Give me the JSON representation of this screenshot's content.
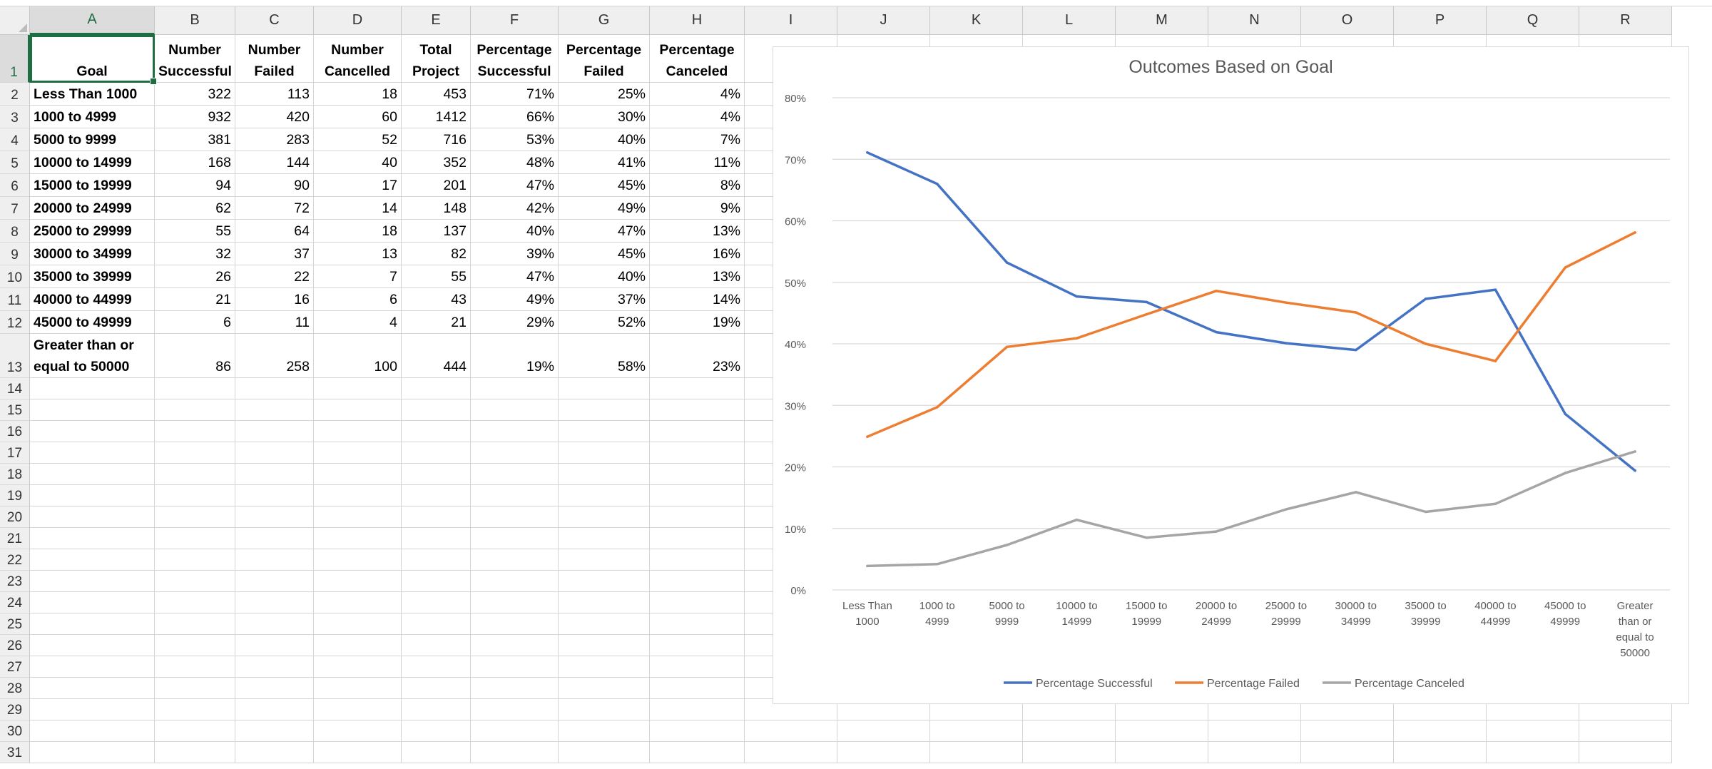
{
  "columns": [
    "A",
    "B",
    "C",
    "D",
    "E",
    "F",
    "G",
    "H",
    "I",
    "J",
    "K",
    "L",
    "M",
    "N",
    "O",
    "P",
    "Q",
    "R"
  ],
  "selected_column": "A",
  "selected_row": "1",
  "row_numbers": [
    "1",
    "2",
    "3",
    "4",
    "5",
    "6",
    "7",
    "8",
    "9",
    "10",
    "11",
    "12",
    "13",
    "14",
    "15",
    "16",
    "17",
    "18",
    "19",
    "20",
    "21",
    "22",
    "23",
    "24",
    "25",
    "26",
    "27",
    "28",
    "29",
    "30",
    "31"
  ],
  "table": {
    "headers": [
      [
        "Goal"
      ],
      [
        "Number",
        "Successful"
      ],
      [
        "Number",
        "Failed"
      ],
      [
        "Number",
        "Cancelled"
      ],
      [
        "Total",
        "Project"
      ],
      [
        "Percentage",
        "Successful"
      ],
      [
        "Percentage",
        "Failed"
      ],
      [
        "Percentage",
        "Canceled"
      ]
    ],
    "rows": [
      [
        "Less Than 1000",
        "322",
        "113",
        "18",
        "453",
        "71%",
        "25%",
        "4%"
      ],
      [
        "1000 to 4999",
        "932",
        "420",
        "60",
        "1412",
        "66%",
        "30%",
        "4%"
      ],
      [
        "5000 to 9999",
        "381",
        "283",
        "52",
        "716",
        "53%",
        "40%",
        "7%"
      ],
      [
        "10000 to 14999",
        "168",
        "144",
        "40",
        "352",
        "48%",
        "41%",
        "11%"
      ],
      [
        "15000 to 19999",
        "94",
        "90",
        "17",
        "201",
        "47%",
        "45%",
        "8%"
      ],
      [
        "20000 to 24999",
        "62",
        "72",
        "14",
        "148",
        "42%",
        "49%",
        "9%"
      ],
      [
        "25000 to 29999",
        "55",
        "64",
        "18",
        "137",
        "40%",
        "47%",
        "13%"
      ],
      [
        "30000 to 34999",
        "32",
        "37",
        "13",
        "82",
        "39%",
        "45%",
        "16%"
      ],
      [
        "35000 to 39999",
        "26",
        "22",
        "7",
        "55",
        "47%",
        "40%",
        "13%"
      ],
      [
        "40000 to 44999",
        "21",
        "16",
        "6",
        "43",
        "49%",
        "37%",
        "14%"
      ],
      [
        "45000 to 49999",
        "6",
        "11",
        "4",
        "21",
        "29%",
        "52%",
        "19%"
      ],
      [
        "Greater than or equal to 50000",
        "86",
        "258",
        "100",
        "444",
        "19%",
        "58%",
        "23%"
      ]
    ],
    "last_goal_lines": [
      "Greater than or",
      "equal to 50000"
    ]
  },
  "chart_data": {
    "type": "line",
    "title": "Outcomes Based on Goal",
    "categories": [
      [
        "Less Than",
        "1000"
      ],
      [
        "1000 to",
        "4999"
      ],
      [
        "5000 to",
        "9999"
      ],
      [
        "10000 to",
        "14999"
      ],
      [
        "15000 to",
        "19999"
      ],
      [
        "20000 to",
        "24999"
      ],
      [
        "25000 to",
        "29999"
      ],
      [
        "30000 to",
        "34999"
      ],
      [
        "35000 to",
        "39999"
      ],
      [
        "40000 to",
        "44999"
      ],
      [
        "45000 to",
        "49999"
      ],
      [
        "Greater",
        "than or",
        "equal to",
        "50000"
      ]
    ],
    "ylim": [
      0,
      80
    ],
    "yticks": [
      "0%",
      "10%",
      "20%",
      "30%",
      "40%",
      "50%",
      "60%",
      "70%",
      "80%"
    ],
    "grid": true,
    "legend_position": "bottom",
    "series": [
      {
        "name": "Percentage Successful",
        "color": "#4472c4",
        "values": [
          71.1,
          66.0,
          53.2,
          47.7,
          46.8,
          41.9,
          40.1,
          39.0,
          47.3,
          48.8,
          28.6,
          19.4
        ]
      },
      {
        "name": "Percentage Failed",
        "color": "#ed7d31",
        "values": [
          24.9,
          29.7,
          39.5,
          40.9,
          44.8,
          48.6,
          46.7,
          45.1,
          40.0,
          37.2,
          52.4,
          58.1
        ]
      },
      {
        "name": "Percentage Canceled",
        "color": "#a5a5a5",
        "values": [
          3.9,
          4.2,
          7.3,
          11.4,
          8.5,
          9.5,
          13.1,
          15.9,
          12.7,
          14.0,
          19.0,
          22.5
        ]
      }
    ]
  }
}
